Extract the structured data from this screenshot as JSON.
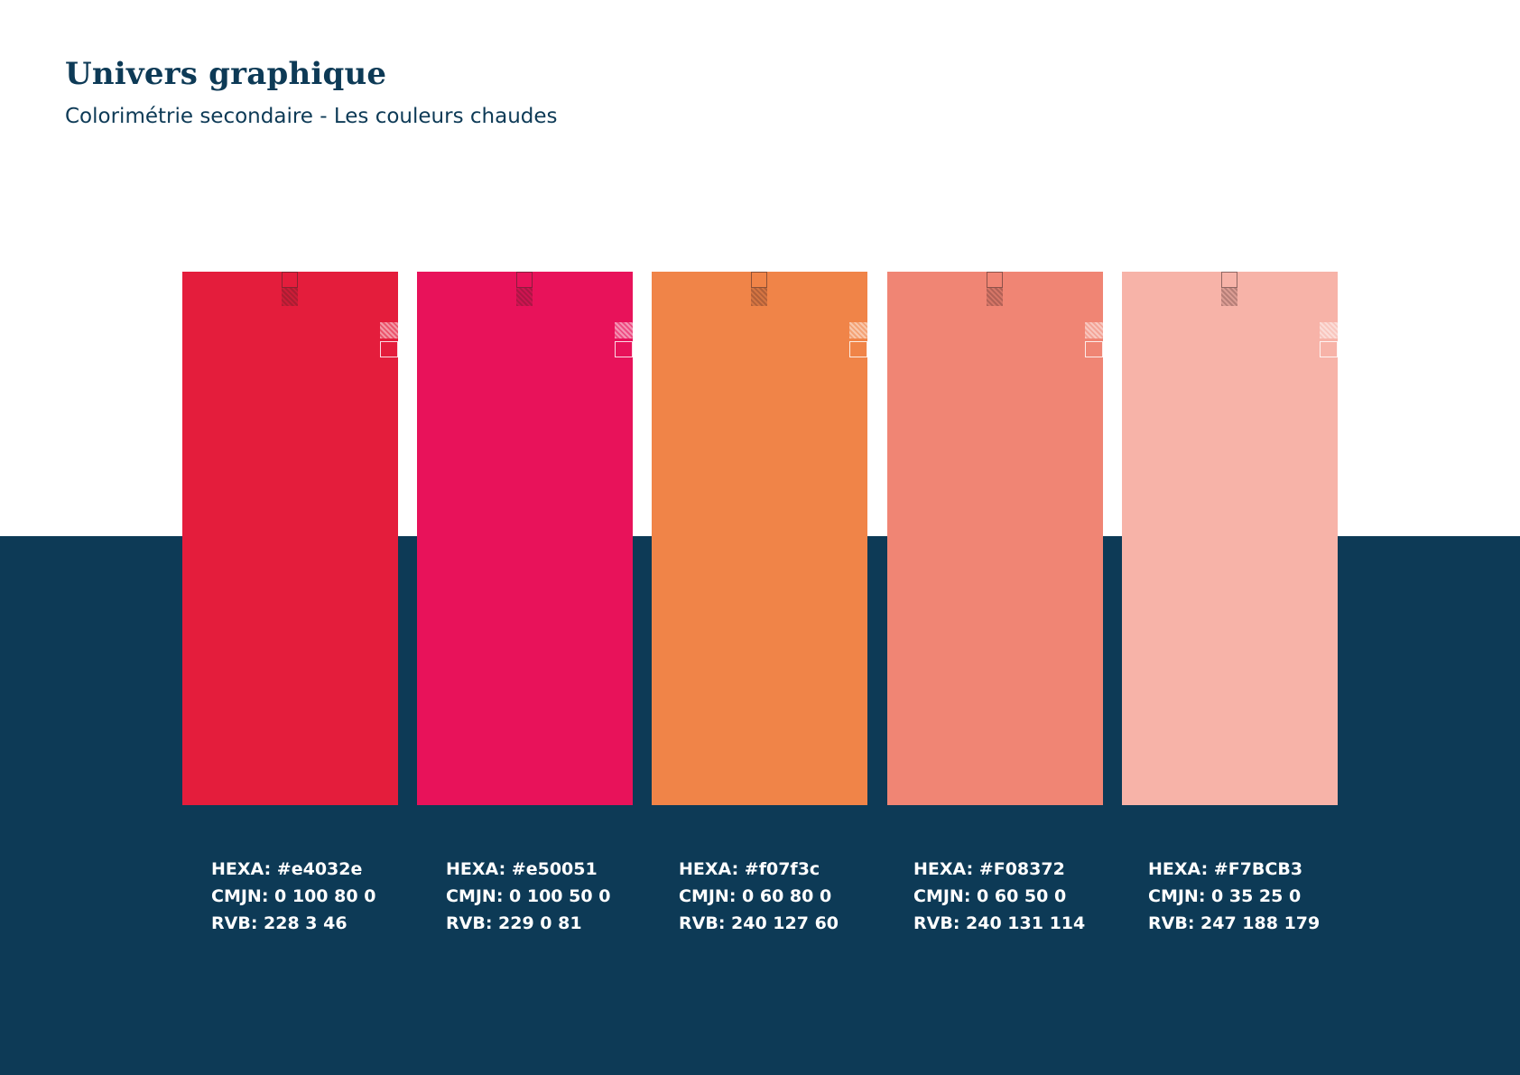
{
  "header": {
    "title": "Univers graphique",
    "subtitle": "Colorimétrie secondaire - Les couleurs chaudes"
  },
  "colors": {
    "band": "#0d3a56"
  },
  "swatches": [
    {
      "fill": "#e41d3c",
      "hexa": "HEXA: #e4032e",
      "cmjn": "CMJN: 0 100 80 0",
      "rvb": "RVB: 228 3 46"
    },
    {
      "fill": "#e8125a",
      "hexa": "HEXA: #e50051",
      "cmjn": "CMJN: 0 100 50 0",
      "rvb": "RVB: 229 0 81"
    },
    {
      "fill": "#f08448",
      "hexa": "HEXA: #f07f3c",
      "cmjn": "CMJN: 0 60 80 0",
      "rvb": "RVB: 240 127 60"
    },
    {
      "fill": "#f08574",
      "hexa": "HEXA: #F08372",
      "cmjn": "CMJN: 0 60 50 0",
      "rvb": "RVB: 240 131 114"
    },
    {
      "fill": "#f7b3a8",
      "hexa": "HEXA: #F7BCB3",
      "cmjn": "CMJN: 0 35 25 0",
      "rvb": "RVB: 247 188 179"
    }
  ]
}
